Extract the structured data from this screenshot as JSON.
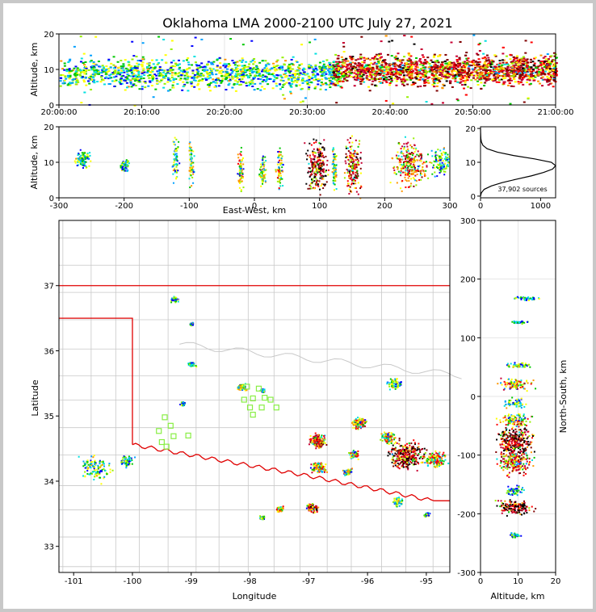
{
  "chart_data": [
    {
      "type": "heatmap",
      "panel": "altitude-vs-time",
      "title": "Oklahoma LMA 2000-2100 UTC July 27, 2021",
      "ylabel": "Altitude, km",
      "xlabel": "",
      "xlim": [
        0,
        60
      ],
      "ylim": [
        0,
        20
      ],
      "x_tick_labels": [
        "20:00:00",
        "20:10:00",
        "20:20:00",
        "20:30:00",
        "20:40:00",
        "20:50:00",
        "21:00:00"
      ],
      "y_tick_labels": [
        "0",
        "10",
        "20"
      ],
      "grid": true,
      "bands": [
        {
          "t0": 0,
          "t1": 34,
          "alt_center": 9,
          "alt_spread": 3.5,
          "intensity": 0.4
        },
        {
          "t0": 33,
          "t1": 60,
          "alt_center": 10,
          "alt_spread": 3.5,
          "intensity": 0.9
        }
      ]
    },
    {
      "type": "heatmap",
      "panel": "altitude-vs-east-west",
      "ylabel": "Altitude, km",
      "xlabel": "East-West, km",
      "xlim": [
        -300,
        300
      ],
      "ylim": [
        0,
        20
      ],
      "x_tick_labels": [
        "-300",
        "-200",
        "-100",
        "0",
        "100",
        "200",
        "300"
      ],
      "y_tick_labels": [
        "0",
        "10",
        "20"
      ],
      "grid": true,
      "clusters": [
        {
          "x": -265,
          "alt": 11,
          "dx": 10,
          "dz": 2,
          "w": 0.4
        },
        {
          "x": -200,
          "alt": 9.5,
          "dx": 6,
          "dz": 1.5,
          "w": 0.3
        },
        {
          "x": -122,
          "alt": 11,
          "dx": 4,
          "dz": 5,
          "w": 0.4
        },
        {
          "x": -98,
          "alt": 10,
          "dx": 3,
          "dz": 6,
          "w": 0.5
        },
        {
          "x": -22,
          "alt": 8.5,
          "dx": 4,
          "dz": 5,
          "w": 0.6
        },
        {
          "x": 12,
          "alt": 7.5,
          "dx": 4,
          "dz": 4,
          "w": 0.5
        },
        {
          "x": 38,
          "alt": 8,
          "dx": 4,
          "dz": 4,
          "w": 0.6
        },
        {
          "x": 95,
          "alt": 9,
          "dx": 13,
          "dz": 6,
          "w": 1.0
        },
        {
          "x": 122,
          "alt": 9,
          "dx": 3,
          "dz": 5,
          "w": 0.5
        },
        {
          "x": 150,
          "alt": 9,
          "dx": 11,
          "dz": 6,
          "w": 0.9
        },
        {
          "x": 238,
          "alt": 10,
          "dx": 20,
          "dz": 5,
          "w": 0.8
        },
        {
          "x": 285,
          "alt": 10,
          "dx": 14,
          "dz": 3,
          "w": 0.4
        }
      ]
    },
    {
      "type": "line",
      "panel": "altitude-histogram",
      "xlim": [
        0,
        1250
      ],
      "ylim": [
        0,
        20
      ],
      "x_tick_labels": [
        "0",
        "1000"
      ],
      "y_tick_labels": [
        "0",
        "10",
        "20"
      ],
      "annotation": "37,902 sources",
      "series": [
        {
          "y": [
            0,
            1,
            2,
            3,
            4,
            5,
            6,
            7,
            8,
            9,
            10,
            11,
            12,
            13,
            14,
            15,
            16,
            17,
            18,
            19,
            20
          ],
          "x": [
            0,
            15,
            60,
            180,
            360,
            600,
            850,
            1050,
            1200,
            1250,
            1180,
            900,
            550,
            280,
            110,
            40,
            15,
            6,
            3,
            1,
            0
          ]
        }
      ]
    },
    {
      "type": "heatmap",
      "panel": "plan-view-map",
      "xlabel": "Longitude",
      "ylabel": "Latitude",
      "xlim": [
        -101.25,
        -94.6
      ],
      "ylim": [
        32.6,
        38.0
      ],
      "x_tick_labels": [
        "-101",
        "-100",
        "-99",
        "-98",
        "-97",
        "-96",
        "-95"
      ],
      "y_tick_labels": [
        "33",
        "34",
        "35",
        "36",
        "37"
      ],
      "state_border_color": "#e00000",
      "county_line_color": "#c8c8c8",
      "station_color": "#88ee44",
      "stations": [
        [
          -98.05,
          35.45
        ],
        [
          -97.85,
          35.42
        ],
        [
          -98.1,
          35.25
        ],
        [
          -97.95,
          35.27
        ],
        [
          -97.75,
          35.28
        ],
        [
          -97.8,
          35.13
        ],
        [
          -98.0,
          35.13
        ],
        [
          -97.95,
          35.02
        ],
        [
          -97.55,
          35.13
        ],
        [
          -97.65,
          35.25
        ],
        [
          -99.45,
          34.98
        ],
        [
          -99.35,
          34.85
        ],
        [
          -99.55,
          34.77
        ],
        [
          -99.3,
          34.69
        ],
        [
          -99.05,
          34.7
        ],
        [
          -99.5,
          34.6
        ],
        [
          -99.42,
          34.53
        ]
      ],
      "clusters": [
        {
          "lon": -99.3,
          "lat": 36.8,
          "size": 0.04,
          "w": 0.3
        },
        {
          "lon": -99.0,
          "lat": 36.42,
          "size": 0.02,
          "w": 0.2
        },
        {
          "lon": -99.0,
          "lat": 35.8,
          "size": 0.04,
          "w": 0.3
        },
        {
          "lon": -99.15,
          "lat": 35.2,
          "size": 0.03,
          "w": 0.3
        },
        {
          "lon": -98.15,
          "lat": 35.45,
          "size": 0.05,
          "w": 0.5
        },
        {
          "lon": -97.8,
          "lat": 35.4,
          "size": 0.03,
          "w": 0.3
        },
        {
          "lon": -96.15,
          "lat": 34.9,
          "size": 0.08,
          "w": 0.7
        },
        {
          "lon": -96.85,
          "lat": 34.62,
          "size": 0.1,
          "w": 0.9
        },
        {
          "lon": -96.25,
          "lat": 34.42,
          "size": 0.06,
          "w": 0.6
        },
        {
          "lon": -96.85,
          "lat": 34.22,
          "size": 0.08,
          "w": 0.7
        },
        {
          "lon": -96.35,
          "lat": 34.15,
          "size": 0.05,
          "w": 0.5
        },
        {
          "lon": -95.35,
          "lat": 34.4,
          "size": 0.2,
          "w": 1.0
        },
        {
          "lon": -95.65,
          "lat": 34.68,
          "size": 0.08,
          "w": 0.6
        },
        {
          "lon": -95.55,
          "lat": 35.5,
          "size": 0.08,
          "w": 0.5
        },
        {
          "lon": -94.85,
          "lat": 34.35,
          "size": 0.12,
          "w": 0.7
        },
        {
          "lon": -100.65,
          "lat": 34.2,
          "size": 0.18,
          "w": 0.4
        },
        {
          "lon": -100.1,
          "lat": 34.32,
          "size": 0.08,
          "w": 0.3
        },
        {
          "lon": -96.95,
          "lat": 33.6,
          "size": 0.06,
          "w": 0.9
        },
        {
          "lon": -97.5,
          "lat": 33.58,
          "size": 0.04,
          "w": 0.7
        },
        {
          "lon": -97.8,
          "lat": 33.45,
          "size": 0.03,
          "w": 0.5
        },
        {
          "lon": -95.5,
          "lat": 33.7,
          "size": 0.06,
          "w": 0.4
        },
        {
          "lon": -95.0,
          "lat": 33.5,
          "size": 0.03,
          "w": 0.3
        }
      ]
    },
    {
      "type": "heatmap",
      "panel": "altitude-vs-north-south",
      "xlabel": "Altitude, km",
      "ylabel": "North-South, km",
      "xlim": [
        0,
        20
      ],
      "ylim": [
        -300,
        300
      ],
      "x_tick_labels": [
        "0",
        "10",
        "20"
      ],
      "y_tick_labels": [
        "-300",
        "-200",
        "-100",
        "0",
        "100",
        "200",
        "300"
      ],
      "clusters": [
        {
          "ns": 168,
          "alt": 12,
          "dns": 3,
          "dalt": 5,
          "w": 0.3
        },
        {
          "ns": 128,
          "alt": 10,
          "dns": 2,
          "dalt": 3,
          "w": 0.2
        },
        {
          "ns": 55,
          "alt": 10,
          "dns": 4,
          "dalt": 4,
          "w": 0.4
        },
        {
          "ns": 22,
          "alt": 9,
          "dns": 8,
          "dalt": 6,
          "w": 0.7
        },
        {
          "ns": -10,
          "alt": 9,
          "dns": 6,
          "dalt": 4,
          "w": 0.4
        },
        {
          "ns": -40,
          "alt": 9,
          "dns": 10,
          "dalt": 5,
          "w": 0.6
        },
        {
          "ns": -75,
          "alt": 9,
          "dns": 22,
          "dalt": 6,
          "w": 1.0
        },
        {
          "ns": -110,
          "alt": 9,
          "dns": 18,
          "dalt": 6,
          "w": 0.8
        },
        {
          "ns": -160,
          "alt": 9,
          "dns": 6,
          "dalt": 3,
          "w": 0.3
        },
        {
          "ns": -188,
          "alt": 9,
          "dns": 10,
          "dalt": 7,
          "w": 1.0
        },
        {
          "ns": -235,
          "alt": 9,
          "dns": 3,
          "dalt": 2,
          "w": 0.2
        }
      ]
    }
  ]
}
